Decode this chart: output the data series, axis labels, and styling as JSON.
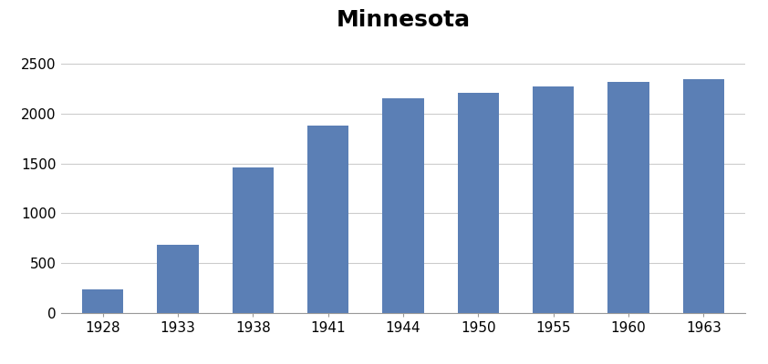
{
  "categories": [
    "1928",
    "1933",
    "1938",
    "1941",
    "1944",
    "1950",
    "1955",
    "1960",
    "1963"
  ],
  "values": [
    235,
    680,
    1460,
    1880,
    2150,
    2205,
    2270,
    2320,
    2340
  ],
  "bar_color": "#5b7fb5",
  "title": "Minnesota",
  "title_fontsize": 18,
  "title_fontweight": "bold",
  "ylim": [
    0,
    2700
  ],
  "yticks": [
    0,
    500,
    1000,
    1500,
    2000,
    2500
  ],
  "background_color": "#ffffff",
  "grid_color": "#cccccc",
  "tick_fontsize": 11,
  "bar_width": 0.55,
  "spine_color": "#999999"
}
